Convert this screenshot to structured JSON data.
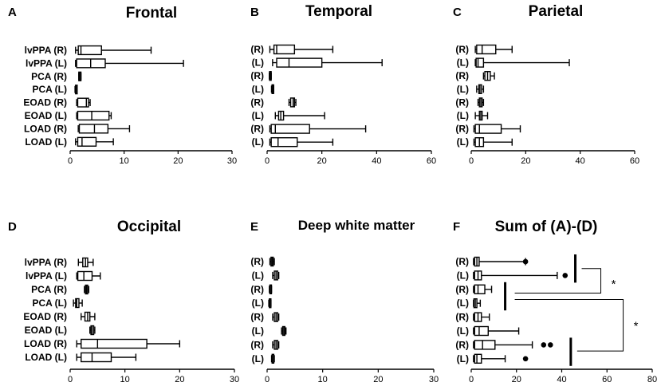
{
  "chart_data": [
    {
      "type": "box",
      "panel": "A",
      "title": "Frontal",
      "ylabels": [
        "lvPPA (R)",
        "lvPPA (L)",
        "PCA (R)",
        "PCA (L)",
        "EOAD (R)",
        "EOAD (L)",
        "LOAD (R)",
        "LOAD (L)"
      ],
      "xlim": [
        0,
        30
      ],
      "xticks": [
        "0",
        "10",
        "20",
        "30"
      ],
      "boxes": [
        {
          "min": 1.0,
          "q1": 1.5,
          "median": 2.0,
          "q3": 5.8,
          "max": 15.0
        },
        {
          "min": 1.0,
          "q1": 1.2,
          "median": 3.8,
          "q3": 6.5,
          "max": 21.0
        },
        {
          "min": 1.6,
          "q1": 1.6,
          "median": 1.8,
          "q3": 2.0,
          "max": 2.0
        },
        {
          "min": 0.9,
          "q1": 1.0,
          "median": 1.1,
          "q3": 1.3,
          "max": 1.3
        },
        {
          "min": 1.2,
          "q1": 1.4,
          "median": 3.0,
          "q3": 3.4,
          "max": 3.7
        },
        {
          "min": 1.2,
          "q1": 1.4,
          "median": 4.0,
          "q3": 7.2,
          "max": 7.6
        },
        {
          "min": 1.5,
          "q1": 1.7,
          "median": 4.5,
          "q3": 7.0,
          "max": 11.0
        },
        {
          "min": 1.0,
          "q1": 1.4,
          "median": 2.2,
          "q3": 4.8,
          "max": 8.0
        }
      ]
    },
    {
      "type": "box",
      "panel": "B",
      "title": "Temporal",
      "ylabels": [
        "(R)",
        "(L)",
        "(R)",
        "(L)",
        "(R)",
        "(L)",
        "(R)",
        "(L)"
      ],
      "xlim": [
        0,
        60
      ],
      "xticks": [
        "0",
        "20",
        "40",
        "60"
      ],
      "boxes": [
        {
          "min": 1.0,
          "q1": 2.5,
          "median": 3.5,
          "q3": 10.0,
          "max": 24.0
        },
        {
          "min": 2.0,
          "q1": 3.5,
          "median": 8.0,
          "q3": 20.0,
          "max": 42.0
        },
        {
          "min": 0.8,
          "q1": 0.9,
          "median": 1.1,
          "q3": 1.4,
          "max": 1.5
        },
        {
          "min": 1.6,
          "q1": 1.8,
          "median": 2.0,
          "q3": 2.2,
          "max": 2.4
        },
        {
          "min": 8.0,
          "q1": 8.6,
          "median": 9.5,
          "q3": 10.0,
          "max": 10.5
        },
        {
          "min": 3.0,
          "q1": 4.2,
          "median": 5.0,
          "q3": 6.0,
          "max": 21.0
        },
        {
          "min": 1.0,
          "q1": 1.5,
          "median": 3.0,
          "q3": 15.5,
          "max": 36.0
        },
        {
          "min": 1.0,
          "q1": 1.5,
          "median": 4.0,
          "q3": 11.0,
          "max": 24.0
        }
      ]
    },
    {
      "type": "box",
      "panel": "C",
      "title": "Parietal",
      "ylabels": [
        "(R)",
        "(L)",
        "(R)",
        "(L)",
        "(R)",
        "(L)",
        "(R)",
        "(L)"
      ],
      "xlim": [
        0,
        60
      ],
      "xticks": [
        "0",
        "20",
        "40",
        "60"
      ],
      "boxes": [
        {
          "min": 1.5,
          "q1": 2.0,
          "median": 4.0,
          "q3": 9.0,
          "max": 15.0
        },
        {
          "min": 1.5,
          "q1": 1.8,
          "median": 2.5,
          "q3": 4.5,
          "max": 36.0
        },
        {
          "min": 4.5,
          "q1": 5.0,
          "median": 6.0,
          "q3": 7.0,
          "max": 8.5
        },
        {
          "min": 2.0,
          "q1": 2.8,
          "median": 3.2,
          "q3": 3.8,
          "max": 4.5
        },
        {
          "min": 2.5,
          "q1": 3.0,
          "median": 3.5,
          "q3": 4.0,
          "max": 4.5
        },
        {
          "min": 1.5,
          "q1": 3.0,
          "median": 3.5,
          "q3": 4.0,
          "max": 6.0
        },
        {
          "min": 1.0,
          "q1": 1.5,
          "median": 3.0,
          "q3": 11.0,
          "max": 18.0
        },
        {
          "min": 1.0,
          "q1": 1.5,
          "median": 3.0,
          "q3": 4.5,
          "max": 15.0
        }
      ]
    },
    {
      "type": "box",
      "panel": "D",
      "title": "Occipital",
      "ylabels": [
        "lvPPA (R)",
        "lvPPA (L)",
        "PCA (R)",
        "PCA (L)",
        "EOAD (R)",
        "EOAD (L)",
        "LOAD (R)",
        "LOAD (L)"
      ],
      "xlim": [
        0,
        30
      ],
      "xticks": [
        "0",
        "10",
        "20",
        "30"
      ],
      "boxes": [
        {
          "min": 1.5,
          "q1": 2.3,
          "median": 2.8,
          "q3": 3.2,
          "max": 4.2
        },
        {
          "min": 1.2,
          "q1": 1.4,
          "median": 2.5,
          "q3": 4.0,
          "max": 5.5
        },
        {
          "min": 2.6,
          "q1": 2.8,
          "median": 3.0,
          "q3": 3.2,
          "max": 3.4
        },
        {
          "min": 0.6,
          "q1": 1.0,
          "median": 1.2,
          "q3": 1.6,
          "max": 2.2
        },
        {
          "min": 2.0,
          "q1": 2.7,
          "median": 3.2,
          "q3": 3.6,
          "max": 4.5
        },
        {
          "min": 3.6,
          "q1": 3.8,
          "median": 4.0,
          "q3": 4.3,
          "max": 4.5
        },
        {
          "min": 1.2,
          "q1": 2.0,
          "median": 5.0,
          "q3": 14.0,
          "max": 20.0
        },
        {
          "min": 1.2,
          "q1": 2.0,
          "median": 4.0,
          "q3": 7.5,
          "max": 12.0
        }
      ]
    },
    {
      "type": "box",
      "panel": "E",
      "title": "Deep white matter",
      "ylabels": [
        "(R)",
        "(L)",
        "(R)",
        "(L)",
        "(R)",
        "(L)",
        "(R)",
        "(L)"
      ],
      "xlim": [
        0,
        30
      ],
      "xticks": [
        "0",
        "10",
        "20",
        "30"
      ],
      "boxes": [
        {
          "min": 0.5,
          "q1": 0.7,
          "median": 0.9,
          "q3": 1.1,
          "max": 1.3
        },
        {
          "min": 1.0,
          "q1": 1.3,
          "median": 1.6,
          "q3": 1.9,
          "max": 2.1
        },
        {
          "min": 0.4,
          "q1": 0.5,
          "median": 0.6,
          "q3": 0.7,
          "max": 0.8
        },
        {
          "min": 0.3,
          "q1": 0.4,
          "median": 0.5,
          "q3": 0.6,
          "max": 0.7
        },
        {
          "min": 1.0,
          "q1": 1.3,
          "median": 1.6,
          "q3": 1.9,
          "max": 2.1
        },
        {
          "min": 2.6,
          "q1": 2.8,
          "median": 3.0,
          "q3": 3.2,
          "max": 3.4
        },
        {
          "min": 1.0,
          "q1": 1.3,
          "median": 1.6,
          "q3": 1.9,
          "max": 2.1
        },
        {
          "min": 0.8,
          "q1": 0.9,
          "median": 1.0,
          "q3": 1.2,
          "max": 1.3
        }
      ]
    },
    {
      "type": "box",
      "panel": "F",
      "title": "Sum of (A)-(D)",
      "ylabels": [
        "(R)",
        "(L)",
        "(R)",
        "(L)",
        "(R)",
        "(L)",
        "(R)",
        "(L)"
      ],
      "xlim": [
        0,
        80
      ],
      "xticks": [
        "0",
        "20",
        "40",
        "60",
        "80"
      ],
      "boxes": [
        {
          "min": 1.0,
          "q1": 1.5,
          "median": 2.5,
          "q3": 3.5,
          "max": 24.0,
          "outliers": [
            24
          ]
        },
        {
          "min": 1.0,
          "q1": 1.5,
          "median": 3.0,
          "q3": 4.5,
          "max": 38.0,
          "outliers": [
            41.5
          ]
        },
        {
          "min": 1.0,
          "q1": 1.5,
          "median": 3.0,
          "q3": 6.0,
          "max": 9.0
        },
        {
          "min": 1.0,
          "q1": 1.2,
          "median": 1.8,
          "q3": 2.5,
          "max": 4.0
        },
        {
          "min": 1.0,
          "q1": 1.5,
          "median": 3.0,
          "q3": 4.5,
          "max": 8.0
        },
        {
          "min": 1.0,
          "q1": 1.5,
          "median": 3.5,
          "q3": 7.5,
          "max": 21.0
        },
        {
          "min": 1.0,
          "q1": 1.5,
          "median": 5.0,
          "q3": 10.5,
          "max": 27.0,
          "outliers": [
            32,
            35
          ]
        },
        {
          "min": 1.0,
          "q1": 1.5,
          "median": 2.5,
          "q3": 4.5,
          "max": 15.0,
          "outliers": [
            24
          ]
        }
      ],
      "group_bars": [
        {
          "x": 46,
          "from_row": 0,
          "to_row": 1
        },
        {
          "x": 15,
          "from_row": 2,
          "to_row": 3
        },
        {
          "x": 44,
          "from_row": 6,
          "to_row": 7
        }
      ],
      "significance": [
        {
          "label": "*",
          "between": [
            "lvPPA",
            "PCA"
          ]
        },
        {
          "label": "*",
          "between": [
            "PCA",
            "LOAD"
          ]
        }
      ]
    }
  ]
}
